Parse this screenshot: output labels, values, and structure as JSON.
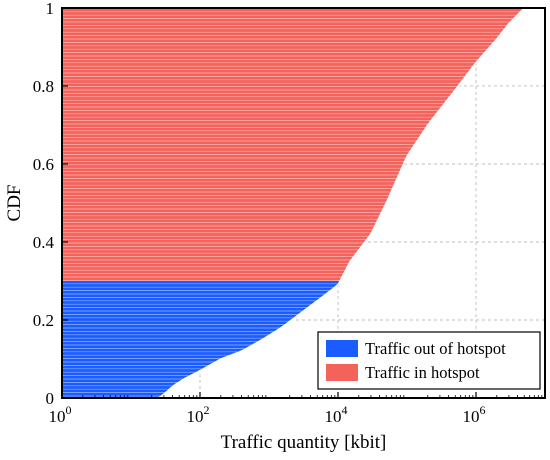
{
  "chart_data": {
    "type": "area",
    "title": "",
    "xlabel": "Traffic quantity [kbit]",
    "ylabel": "CDF",
    "x_scale": "log",
    "xlim": [
      1,
      10000000
    ],
    "ylim": [
      0,
      1
    ],
    "grid": true,
    "legend_position": "bottom-right",
    "x_ticks": [
      {
        "base": "10",
        "exp": "0",
        "value": 1
      },
      {
        "base": "10",
        "exp": "2",
        "value": 100
      },
      {
        "base": "10",
        "exp": "4",
        "value": 10000
      },
      {
        "base": "10",
        "exp": "6",
        "value": 1000000
      }
    ],
    "y_ticks": [
      "0",
      "0.2",
      "0.4",
      "0.6",
      "0.8",
      "1"
    ],
    "y_tick_values": [
      0,
      0.2,
      0.4,
      0.6,
      0.8,
      1.0
    ],
    "cdf_curve": {
      "x": [
        25,
        30,
        35,
        40,
        60,
        100,
        200,
        400,
        800,
        1500,
        3000,
        6000,
        10000,
        15000,
        30000,
        50000,
        100000,
        200000,
        300000,
        500000,
        1000000,
        2000000,
        3000000,
        5000000
      ],
      "y": [
        0.0,
        0.01,
        0.02,
        0.03,
        0.05,
        0.07,
        0.1,
        0.12,
        0.15,
        0.18,
        0.22,
        0.26,
        0.29,
        0.35,
        0.42,
        0.5,
        0.62,
        0.7,
        0.74,
        0.79,
        0.86,
        0.92,
        0.96,
        1.0
      ]
    },
    "hotspot_threshold_cdf": 0.3,
    "series": [
      {
        "name": "Traffic out of hotspot",
        "color": "#1a5cff",
        "cdf_range": [
          0,
          0.3
        ]
      },
      {
        "name": "Traffic in hotspot",
        "color": "#f4625c",
        "cdf_range": [
          0.3,
          1.0
        ]
      }
    ]
  },
  "colors": {
    "out_hotspot": "#1a5cff",
    "in_hotspot": "#f4625c",
    "stripe": "#ffffff",
    "grid": "#bdbdbd"
  }
}
